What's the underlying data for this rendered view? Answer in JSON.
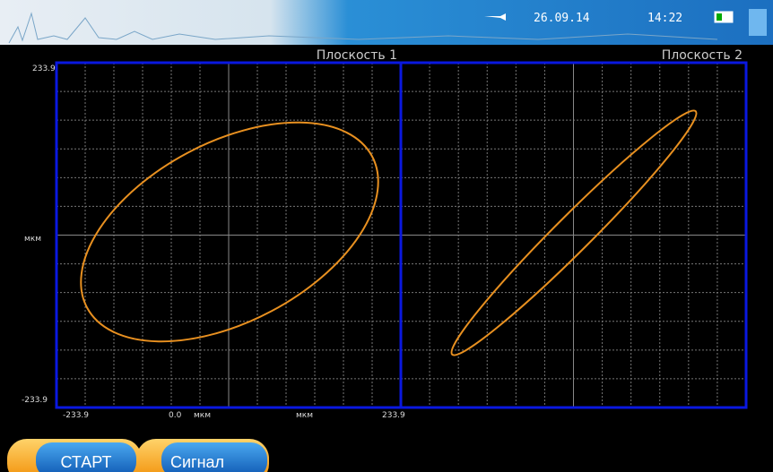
{
  "status": {
    "date": "26.09.14",
    "time": "14:22"
  },
  "plots": [
    {
      "title": "Плоскость 1",
      "y_max": "233.9",
      "y_unit": "мкм",
      "y_min": "-233.9",
      "x_min": "-233.9",
      "x_zero": "0.0",
      "x_unit_1": "мкм",
      "x_unit_2": "мкм",
      "x_max": "233.9"
    },
    {
      "title": "Плоскость 2"
    }
  ],
  "buttons": [
    "СТАРТ",
    "Сигнал"
  ]
}
